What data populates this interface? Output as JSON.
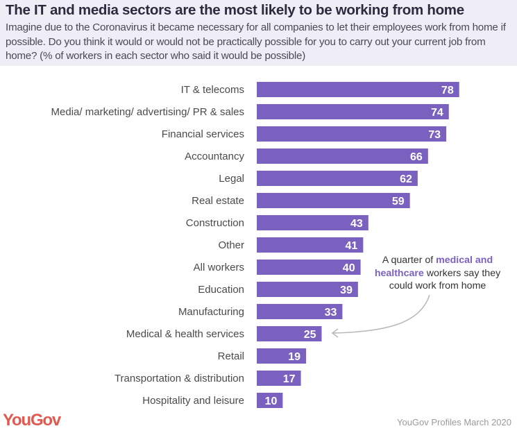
{
  "header": {
    "title": "The IT and media sectors are the most likely to be working from home",
    "subtitle": "Imagine due to the Coronavirus it became necessary for all companies to let their employees work from home if possible. Do you think it would or would not be practically possible for you to carry out your current job from home? (% of workers in each sector who said it would be possible)"
  },
  "annotation": {
    "prefix": "A quarter of ",
    "highlight": "medical and healthcare",
    "suffix": " workers say they could work from home",
    "points_to": "Medical & health services"
  },
  "footer": {
    "logo": "YouGov",
    "source": "YouGov Profiles March 2020"
  },
  "colors": {
    "bar": "#7b61bf",
    "bar_label": "#ffffff",
    "header_bg": "#efedf6",
    "logo": "#e05a4f",
    "highlight": "#7b61bf"
  },
  "chart_data": {
    "type": "bar",
    "orientation": "horizontal",
    "title": "The IT and media sectors are the most likely to be working from home",
    "xlabel": "",
    "ylabel": "",
    "unit": "% of workers who said it would be possible",
    "grid": false,
    "legend": "none",
    "xlim": [
      0,
      100
    ],
    "categories": [
      "IT & telecoms",
      "Media/ marketing/ advertising/ PR & sales",
      "Financial services",
      "Accountancy",
      "Legal",
      "Real estate",
      "Construction",
      "Other",
      "All workers",
      "Education",
      "Manufacturing",
      "Medical & health services",
      "Retail",
      "Transportation & distribution",
      "Hospitality and leisure"
    ],
    "values": [
      78,
      74,
      73,
      66,
      62,
      59,
      43,
      41,
      40,
      39,
      33,
      25,
      19,
      17,
      10
    ]
  }
}
